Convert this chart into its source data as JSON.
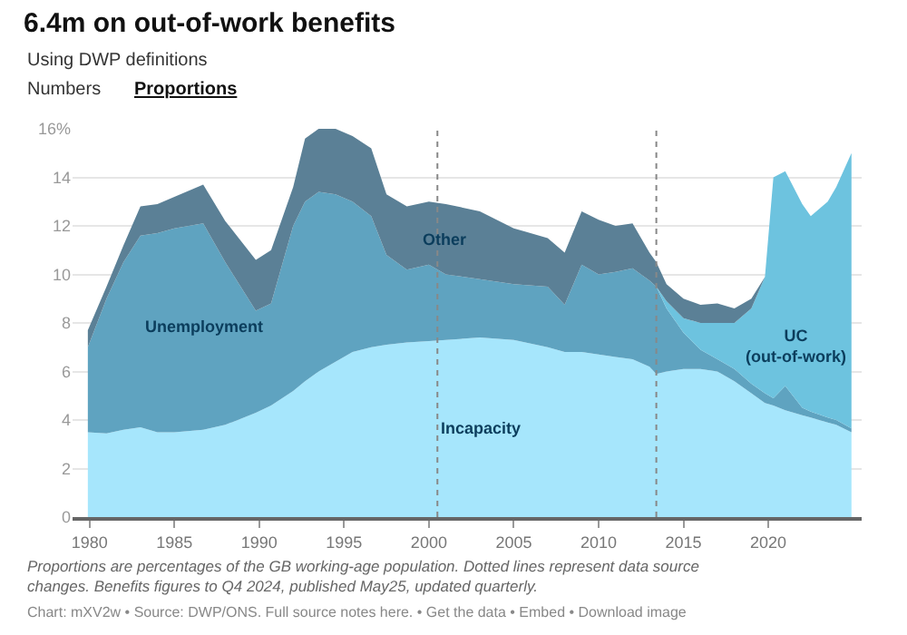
{
  "chart_data": {
    "type": "area",
    "stacked": true,
    "title": "6.4m on out-of-work benefits",
    "subtitle": "Using DWP definitions",
    "annotations": [
      "Numbers",
      "Proportions",
      "Proportions are percentages of the GB working-age population. Dotted lines represent data source changes. Benefits figures to Q4 2024, published May25, updated quarterly.",
      "Chart: mXV2w • Source: DWP/ONS. Full source notes here. • Get the data • Embed • Download image"
    ],
    "x": [
      1979.9,
      1981,
      1982,
      1983,
      1984,
      1985,
      1986.7,
      1988,
      1989.8,
      1990.7,
      1992,
      1992.7,
      1993.5,
      1994.5,
      1995.5,
      1996.6,
      1997.5,
      1998.7,
      2000,
      2001,
      2003,
      2005,
      2007,
      2008,
      2009,
      2010,
      2011,
      2012,
      2013,
      2013.4,
      2014,
      2015,
      2016,
      2017,
      2018,
      2019,
      2019.8,
      2020.3,
      2021,
      2022,
      2022.5,
      2023.5,
      2024,
      2024.9
    ],
    "series": [
      {
        "name": "Incapacity",
        "color": "#a6e6fc",
        "values": [
          3.5,
          3.45,
          3.6,
          3.7,
          3.5,
          3.5,
          3.6,
          3.8,
          4.3,
          4.6,
          5.2,
          5.6,
          6.0,
          6.4,
          6.8,
          7.0,
          7.1,
          7.2,
          7.25,
          7.3,
          7.4,
          7.3,
          7.0,
          6.8,
          6.8,
          6.7,
          6.6,
          6.5,
          6.2,
          5.9,
          6.0,
          6.1,
          6.1,
          6.0,
          5.6,
          5.1,
          4.7,
          4.6,
          4.4,
          4.2,
          4.1,
          3.9,
          3.8,
          3.5
        ]
      },
      {
        "name": "Unemployment",
        "color": "#5fa3c0",
        "values": [
          3.5,
          5.55,
          6.9,
          7.9,
          8.2,
          8.4,
          8.5,
          6.7,
          4.2,
          4.2,
          6.8,
          7.4,
          7.4,
          6.9,
          6.2,
          5.4,
          3.7,
          3.0,
          3.15,
          2.7,
          2.4,
          2.3,
          2.5,
          1.95,
          3.6,
          3.3,
          3.5,
          3.75,
          3.55,
          3.6,
          2.6,
          1.5,
          0.8,
          0.5,
          0.5,
          0.4,
          0.4,
          0.3,
          1.0,
          0.3,
          0.25,
          0.2,
          0.2,
          0.15
        ]
      },
      {
        "name": "UC\n(out-of-work)",
        "color": "#6dc3df",
        "values": [
          0,
          0,
          0,
          0,
          0,
          0,
          0,
          0,
          0,
          0,
          0,
          0,
          0,
          0,
          0,
          0,
          0,
          0,
          0,
          0,
          0,
          0,
          0,
          0,
          0,
          0,
          0,
          0,
          0,
          0,
          0.3,
          0.6,
          1.1,
          1.5,
          1.9,
          3.1,
          4.8,
          9.1,
          8.85,
          8.4,
          8.05,
          8.9,
          9.6,
          11.35
        ]
      },
      {
        "name": "Other",
        "color": "#5b8096",
        "values": [
          0.7,
          0.5,
          0.7,
          1.2,
          1.2,
          1.3,
          1.6,
          1.7,
          2.1,
          2.2,
          1.6,
          2.6,
          2.6,
          2.7,
          2.7,
          2.8,
          2.5,
          2.6,
          2.6,
          2.9,
          2.8,
          2.3,
          2.0,
          2.15,
          2.2,
          2.25,
          1.9,
          1.85,
          1.15,
          1.0,
          0.7,
          0.8,
          0.75,
          0.8,
          0.6,
          0.4,
          0,
          0,
          0,
          0,
          0,
          0,
          0,
          0
        ]
      }
    ],
    "xlim": [
      1979,
      2025.5
    ],
    "xticks": [
      1980,
      1985,
      1990,
      1995,
      2000,
      2005,
      2010,
      2015,
      2020
    ],
    "ylim": [
      0,
      16
    ],
    "yticks": [
      0,
      2,
      4,
      6,
      8,
      10,
      12,
      14,
      {
        "value": 16,
        "label": "16%"
      }
    ],
    "ref_lines": [
      {
        "axis": "x",
        "value": 2000.5,
        "label": null,
        "color": "#888888",
        "line_style": "dotted"
      },
      {
        "axis": "x",
        "value": 2013.4,
        "label": null,
        "color": "#888888",
        "line_style": "dotted"
      }
    ],
    "grid": "y"
  }
}
